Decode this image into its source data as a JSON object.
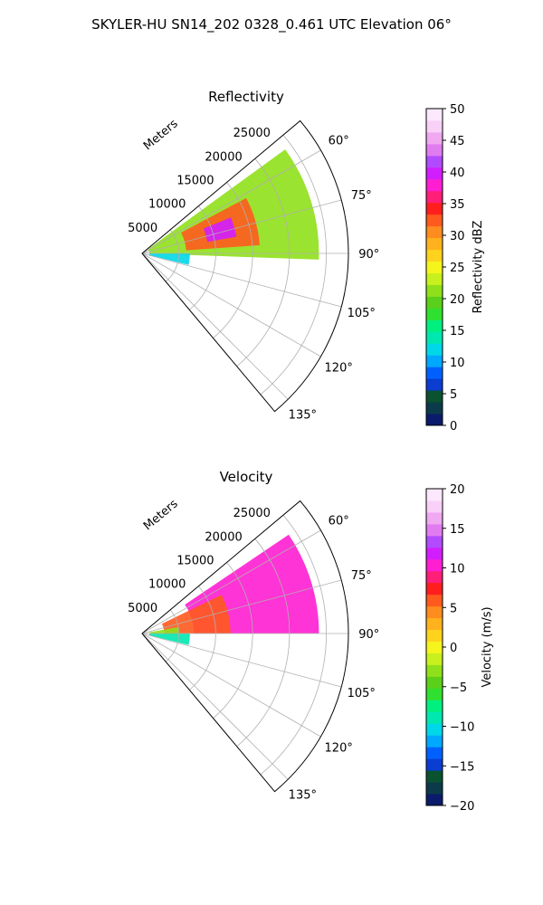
{
  "figure": {
    "suptitle": "SKYLER-HU  SN14_202  0328_0.461 UTC Elevation 06°"
  },
  "chart_data": [
    {
      "type": "heatmap",
      "projection": "polar-sector",
      "title": "Reflectivity",
      "radial_label": "Meters",
      "theta_range_deg": [
        50,
        140
      ],
      "r_range": [
        0,
        28000
      ],
      "r_ticks": [
        5000,
        10000,
        15000,
        20000,
        25000
      ],
      "theta_ticks": [
        60,
        75,
        90,
        105,
        120,
        135
      ],
      "grid": true,
      "echo_regions": [
        {
          "az": [
            54,
            92
          ],
          "r": [
            1000,
            24000
          ],
          "value": 22
        },
        {
          "az": [
            62,
            86
          ],
          "r": [
            6000,
            16000
          ],
          "value": 33
        },
        {
          "az": [
            68,
            80
          ],
          "r": [
            9000,
            13000
          ],
          "value": 40
        },
        {
          "az": [
            90,
            104
          ],
          "r": [
            1000,
            6500
          ],
          "value": 12
        }
      ],
      "colorbar": {
        "label": "Reflectivity dBZ",
        "min": 0,
        "max": 50,
        "ticks": [
          0,
          5,
          10,
          15,
          20,
          25,
          30,
          35,
          40,
          45,
          50
        ],
        "colors": [
          "#0b1b6b",
          "#0b3b4a",
          "#0b5230",
          "#0a3dd0",
          "#0060ff",
          "#00a8ff",
          "#00d7e8",
          "#00e8b0",
          "#00f080",
          "#30e030",
          "#5ad01a",
          "#8fe01a",
          "#c8f01e",
          "#f5f51e",
          "#ffd21e",
          "#ffb21e",
          "#ff8c1e",
          "#ff5a1e",
          "#ff1e1e",
          "#ff1e78",
          "#ff1ed2",
          "#d21eff",
          "#b24bff",
          "#e07cf0",
          "#f0a8f0",
          "#f8d0f8",
          "#fce8fc"
        ]
      }
    },
    {
      "type": "heatmap",
      "projection": "polar-sector",
      "title": "Velocity",
      "radial_label": "Meters",
      "theta_range_deg": [
        50,
        140
      ],
      "r_range": [
        0,
        28000
      ],
      "r_ticks": [
        5000,
        10000,
        15000,
        20000,
        25000
      ],
      "theta_ticks": [
        60,
        75,
        90,
        105,
        120,
        135
      ],
      "grid": true,
      "echo_regions": [
        {
          "az": [
            56,
            90
          ],
          "r": [
            7000,
            24000
          ],
          "value": 11
        },
        {
          "az": [
            64,
            90
          ],
          "r": [
            3000,
            12000
          ],
          "value": 6
        },
        {
          "az": [
            80,
            92
          ],
          "r": [
            1000,
            5000
          ],
          "value": -3
        },
        {
          "az": [
            90,
            104
          ],
          "r": [
            1000,
            6500
          ],
          "value": -9
        }
      ],
      "colorbar": {
        "label": "Velocity (m/s)",
        "min": -20,
        "max": 20,
        "ticks": [
          -20,
          -15,
          -10,
          -5,
          0,
          5,
          10,
          15,
          20
        ],
        "colors": [
          "#0b1b6b",
          "#0b3b4a",
          "#0b5230",
          "#0a3dd0",
          "#0060ff",
          "#00a8ff",
          "#00d7e8",
          "#00e8b0",
          "#00f080",
          "#30e030",
          "#5ad01a",
          "#8fe01a",
          "#c8f01e",
          "#f5f51e",
          "#ffd21e",
          "#ffb21e",
          "#ff8c1e",
          "#ff5a1e",
          "#ff1e1e",
          "#ff1e78",
          "#ff1ed2",
          "#d21eff",
          "#b24bff",
          "#e07cf0",
          "#f0a8f0",
          "#f8d0f8",
          "#fce8fc"
        ]
      }
    }
  ]
}
